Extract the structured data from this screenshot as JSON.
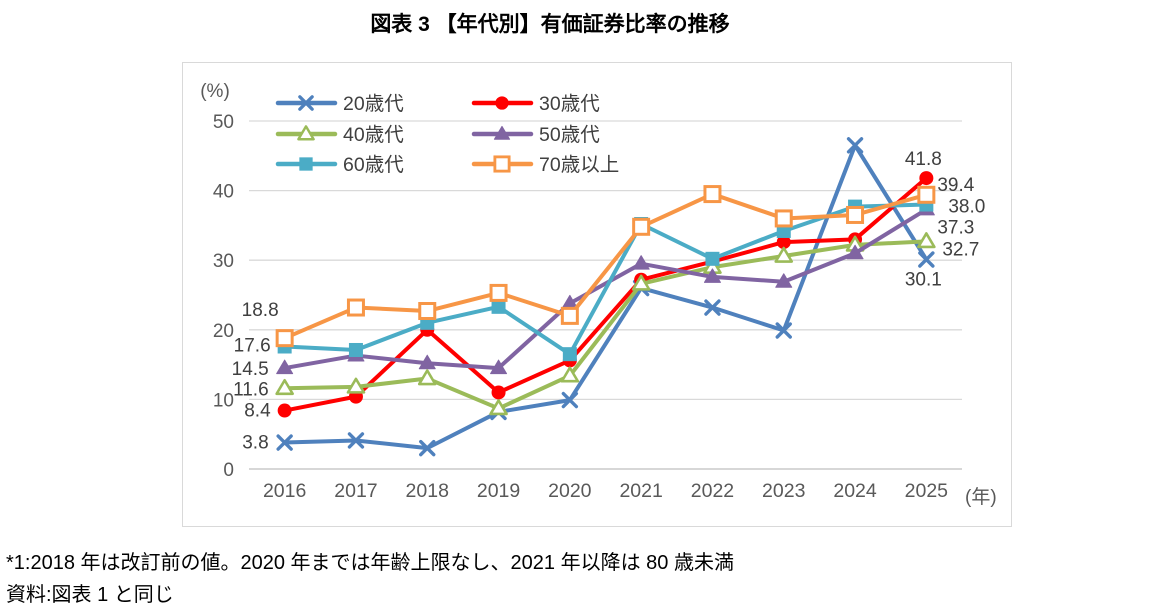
{
  "title": "図表 3 【年代別】有価証券比率の推移",
  "footnotes": [
    "*1:2018 年は改訂前の値。2020 年までは年齢上限なし、2021 年以降は 80 歳未満",
    "資料:図表 1 と同じ"
  ],
  "chart_data": {
    "type": "line",
    "title": "図表 3 【年代別】有価証券比率の推移",
    "x": [
      2016,
      2017,
      2018,
      2019,
      2020,
      2021,
      2022,
      2023,
      2024,
      2025
    ],
    "x_axis_unit": "(年)",
    "y_axis_unit": "(%)",
    "ylim": [
      0,
      50
    ],
    "yticks": [
      0,
      10,
      20,
      30,
      40,
      50
    ],
    "grid": true,
    "legend_position": "top-left-inside",
    "colors": {
      "grid": "#d9d9d9",
      "axis": "#bfbfbf",
      "axis_text": "#595959",
      "label_text": "#404040"
    },
    "series": [
      {
        "name": "20歳代",
        "color": "#4F81BD",
        "marker": "x",
        "values": [
          3.8,
          4.1,
          3.0,
          8.2,
          9.9,
          26.0,
          23.2,
          19.9,
          46.5,
          30.1
        ],
        "start_label": "3.8",
        "end_label": "30.1"
      },
      {
        "name": "30歳代",
        "color": "#FF0000",
        "marker": "circle",
        "values": [
          8.4,
          10.4,
          20.0,
          11.0,
          15.6,
          27.2,
          29.8,
          32.6,
          33.0,
          41.8
        ],
        "start_label": "8.4",
        "end_label": "41.8"
      },
      {
        "name": "40歳代",
        "color": "#9BBB59",
        "marker": "triangle-open",
        "values": [
          11.6,
          11.8,
          13.0,
          8.7,
          13.4,
          26.6,
          29.0,
          30.6,
          32.2,
          32.7
        ],
        "start_label": "11.6",
        "end_label": "32.7"
      },
      {
        "name": "50歳代",
        "color": "#8064A2",
        "marker": "triangle-filled",
        "values": [
          14.5,
          16.3,
          15.2,
          14.5,
          23.8,
          29.5,
          27.6,
          26.9,
          31.0,
          37.3
        ],
        "start_label": "14.5",
        "end_label": "37.3"
      },
      {
        "name": "60歳代",
        "color": "#4BACC6",
        "marker": "square-filled",
        "values": [
          17.6,
          17.1,
          21.0,
          23.3,
          16.5,
          35.2,
          30.2,
          34.2,
          37.7,
          38.0
        ],
        "start_label": "17.6",
        "end_label": "38.0"
      },
      {
        "name": "70歳以上",
        "color": "#F79646",
        "marker": "square-open",
        "values": [
          18.8,
          23.2,
          22.7,
          25.3,
          22.0,
          34.8,
          39.5,
          36.0,
          36.5,
          39.4
        ],
        "start_label": "18.8",
        "end_label": "39.4"
      }
    ]
  }
}
